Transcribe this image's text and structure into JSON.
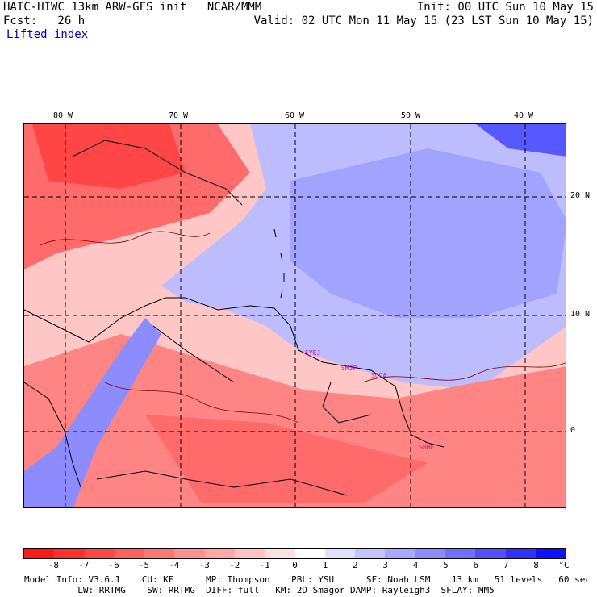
{
  "header": {
    "title_left": "HAIC-HIWC 13km ARW-GFS init   NCAR/MMM",
    "init": "Init: 00 UTC Sun 10 May 15",
    "fcst_label": "Fcst:   26 h",
    "valid": "Valid: 02 UTC Mon 11 May 15 (23 LST Sun 10 May 15)",
    "field": "Lifted index"
  },
  "axes": {
    "lon_labels": [
      "80 W",
      "70 W",
      "60 W",
      "50 W",
      "40 W"
    ],
    "lat_labels": [
      "20 N",
      "10 N",
      "0"
    ]
  },
  "stations": [
    "SYEJ",
    "SMJP",
    "SOCA",
    "SBBE"
  ],
  "colorbar": {
    "tick_labels": [
      "-8",
      "-7",
      "-6",
      "-5",
      "-4",
      "-3",
      "-2",
      "-1",
      "0",
      "1",
      "2",
      "3",
      "4",
      "5",
      "6",
      "7",
      "8"
    ],
    "unit": "°C",
    "colors": [
      "#ff1a1a",
      "#ff3030",
      "#ff4848",
      "#ff6060",
      "#ff7878",
      "#ff9090",
      "#ffa8a8",
      "#ffc4c4",
      "#ffe0e0",
      "#ffffff",
      "#e0e0ff",
      "#c4c4ff",
      "#a8a8ff",
      "#8c8cff",
      "#7070ff",
      "#5050ff",
      "#3030ff",
      "#1010ff"
    ]
  },
  "model_info": {
    "line1": "Model Info: V3.6.1    CU: KF      MP: Thompson    PBL: YSU      SF: Noah LSM    13 km   51 levels   60 sec",
    "line2": "          LW: RRTMG    SW: RRTMG  DIFF: full   KM: 2D Smagor DAMP: Rayleigh3  SFLAY: MM5"
  }
}
